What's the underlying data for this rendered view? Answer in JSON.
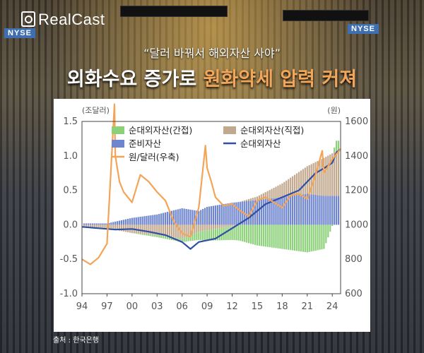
{
  "brand": {
    "name": "RealCast"
  },
  "background_signs": [
    "NYSE",
    "NYSE"
  ],
  "headline": {
    "subtitle": "“달러 바꿔서 해외자산 사야”",
    "title_part1": "외화수요 증가로 ",
    "title_part2": "원화약세 압력 커져"
  },
  "source": "출처 : 한국은행",
  "chart_data": {
    "type": "bar",
    "title": "",
    "left_axis_unit": "(조달러)",
    "right_axis_unit": "(원)",
    "ylim_left": [
      -1.0,
      1.5
    ],
    "ylim_right": [
      600,
      1600
    ],
    "yticks_left": [
      "1.5",
      "1.0",
      "0.5",
      "0.0",
      "-0.5",
      "-1.0"
    ],
    "yticks_right": [
      "1600",
      "1400",
      "1200",
      "1000",
      "800",
      "600"
    ],
    "x_range": [
      1994,
      2025
    ],
    "xticks": [
      "94",
      "97",
      "00",
      "03",
      "06",
      "09",
      "12",
      "15",
      "18",
      "21",
      "24"
    ],
    "grid": false,
    "legend_position": "top",
    "colors": {
      "indirect": "#8cd17a",
      "direct": "#c2a98e",
      "reserves": "#6f86cf",
      "net": "#2e4fa3",
      "fx": "#f4a458"
    },
    "series": [
      {
        "name": "순대외자산(간접)",
        "kind": "bar",
        "axis": "left",
        "x": [
          1994.5,
          1997,
          2000,
          2003,
          2006,
          2008,
          2009,
          2012,
          2015,
          2018,
          2021,
          2023,
          2024.5
        ],
        "values": [
          0.0,
          0.0,
          0.0,
          -0.03,
          -0.05,
          -0.12,
          -0.15,
          -0.2,
          -0.3,
          -0.35,
          -0.4,
          -0.35,
          0.15
        ]
      },
      {
        "name": "순대외자산(직접)",
        "kind": "bar",
        "axis": "left",
        "x": [
          1994.5,
          1997,
          2000,
          2003,
          2006,
          2008,
          2009,
          2012,
          2015,
          2018,
          2021,
          2023,
          2024.5
        ],
        "values": [
          -0.03,
          -0.05,
          -0.12,
          -0.15,
          -0.2,
          -0.1,
          -0.08,
          -0.02,
          0.05,
          0.2,
          0.4,
          0.55,
          0.65
        ]
      },
      {
        "name": "준비자산",
        "kind": "bar",
        "axis": "left",
        "x": [
          1994.5,
          1997,
          2000,
          2003,
          2006,
          2008,
          2009,
          2012,
          2015,
          2018,
          2021,
          2023,
          2024.5
        ],
        "values": [
          0.02,
          0.02,
          0.1,
          0.15,
          0.24,
          0.2,
          0.26,
          0.32,
          0.36,
          0.4,
          0.45,
          0.42,
          0.42
        ]
      },
      {
        "name": "순대외자산",
        "kind": "line",
        "axis": "left",
        "x": [
          1994,
          1996,
          1998,
          2000,
          2002,
          2004,
          2006,
          2007,
          2008,
          2010,
          2012,
          2014,
          2016,
          2018,
          2020,
          2022,
          2023,
          2024,
          2024.5,
          2025
        ],
        "values": [
          -0.03,
          -0.05,
          -0.07,
          -0.06,
          -0.1,
          -0.15,
          -0.25,
          -0.35,
          -0.25,
          -0.2,
          -0.05,
          0.1,
          0.3,
          0.4,
          0.5,
          0.75,
          0.82,
          0.9,
          1.05,
          1.1
        ]
      },
      {
        "name": "원/달러(우축)",
        "kind": "line",
        "axis": "right",
        "x": [
          1994,
          1995,
          1996,
          1997,
          1997.9,
          1998,
          1998.5,
          1999,
          2000,
          2001,
          2002,
          2003,
          2004,
          2005,
          2006,
          2007,
          2008,
          2008.8,
          2009,
          2009.5,
          2010,
          2011,
          2012,
          2013,
          2014,
          2015,
          2016,
          2017,
          2018,
          2019,
          2020,
          2021,
          2022,
          2022.8,
          2023,
          2024,
          2025
        ],
        "values": [
          800,
          770,
          810,
          890,
          1700,
          1400,
          1250,
          1190,
          1130,
          1290,
          1250,
          1190,
          1140,
          1020,
          950,
          930,
          1100,
          1460,
          1330,
          1250,
          1160,
          1110,
          1120,
          1080,
          1050,
          1140,
          1160,
          1130,
          1100,
          1170,
          1180,
          1150,
          1290,
          1430,
          1300,
          1380,
          1440
        ]
      }
    ]
  }
}
